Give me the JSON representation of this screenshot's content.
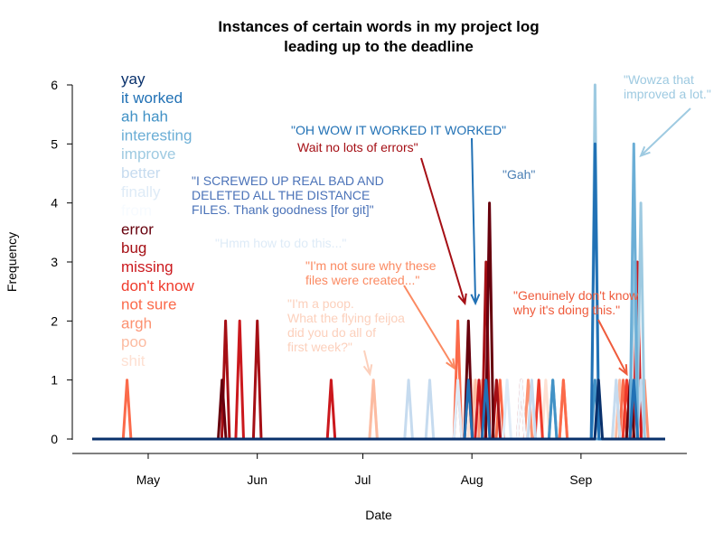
{
  "chart_data": {
    "type": "line",
    "title": [
      "Instances of certain words in my project log",
      "leading up to the deadline"
    ],
    "xlabel": "Date",
    "ylabel": "Frequency",
    "ylim": [
      0,
      6
    ],
    "xlim": [
      "2016-04-12",
      "2016-09-28"
    ],
    "y_ticks": [
      "0",
      "1",
      "2",
      "3",
      "4",
      "5",
      "6"
    ],
    "x_ticks": [
      {
        "label": "May",
        "date": "2016-05-01"
      },
      {
        "label": "Jun",
        "date": "2016-06-01"
      },
      {
        "label": "Jul",
        "date": "2016-07-01"
      },
      {
        "label": "Aug",
        "date": "2016-08-01"
      },
      {
        "label": "Sep",
        "date": "2016-09-01"
      }
    ],
    "grid": false,
    "legend_position": "top-left",
    "series": [
      {
        "name": "yay",
        "color": "#08306b",
        "points": [
          [
            "2016-09-06",
            1
          ]
        ]
      },
      {
        "name": "it worked",
        "color": "#2171b5",
        "points": [
          [
            "2016-07-31",
            1
          ],
          [
            "2016-08-05",
            1
          ],
          [
            "2016-09-05",
            5
          ],
          [
            "2016-09-16",
            1
          ]
        ]
      },
      {
        "name": "ah hah",
        "color": "#4292c6",
        "points": [
          [
            "2016-08-24",
            1
          ],
          [
            "2016-09-05",
            1
          ]
        ]
      },
      {
        "name": "interesting",
        "color": "#6baed6",
        "points": [
          [
            "2016-08-24",
            1
          ],
          [
            "2016-09-16",
            5
          ]
        ]
      },
      {
        "name": "improve",
        "color": "#9ecae1",
        "points": [
          [
            "2016-09-05",
            6
          ],
          [
            "2016-09-16",
            3
          ],
          [
            "2016-09-18",
            4
          ]
        ]
      },
      {
        "name": "better",
        "color": "#c6dbef",
        "points": [
          [
            "2016-07-14",
            1
          ],
          [
            "2016-07-20",
            1
          ],
          [
            "2016-08-18",
            1
          ],
          [
            "2016-09-11",
            1
          ],
          [
            "2016-09-18",
            1
          ]
        ]
      },
      {
        "name": "finally",
        "color": "#deebf7",
        "points": [
          [
            "2016-07-28",
            1
          ],
          [
            "2016-08-11",
            1
          ],
          [
            "2016-09-11",
            1
          ]
        ]
      },
      {
        "name": "from",
        "color": "#f7fbff",
        "points": [
          [
            "2016-08-15",
            1
          ]
        ]
      },
      {
        "name": "error",
        "color": "#67000d",
        "points": [
          [
            "2016-05-22",
            1
          ],
          [
            "2016-07-31",
            2
          ],
          [
            "2016-08-06",
            4
          ],
          [
            "2016-09-15",
            1
          ]
        ]
      },
      {
        "name": "bug",
        "color": "#a50f15",
        "points": [
          [
            "2016-05-23",
            2
          ],
          [
            "2016-06-01",
            2
          ],
          [
            "2016-08-05",
            3
          ],
          [
            "2016-08-08",
            1
          ],
          [
            "2016-08-15",
            1
          ]
        ]
      },
      {
        "name": "missing",
        "color": "#cb181d",
        "points": [
          [
            "2016-05-27",
            2
          ],
          [
            "2016-06-22",
            1
          ],
          [
            "2016-08-03",
            1
          ],
          [
            "2016-09-17",
            3
          ]
        ]
      },
      {
        "name": "don't know",
        "color": "#ef3b2c",
        "points": [
          [
            "2016-07-31",
            1
          ],
          [
            "2016-08-20",
            1
          ],
          [
            "2016-09-14",
            1
          ],
          [
            "2016-09-18",
            1
          ]
        ]
      },
      {
        "name": "not sure",
        "color": "#fb6a4a",
        "points": [
          [
            "2016-04-25",
            1
          ],
          [
            "2016-07-28",
            2
          ],
          [
            "2016-08-09",
            1
          ],
          [
            "2016-08-27",
            1
          ],
          [
            "2016-09-13",
            1
          ]
        ]
      },
      {
        "name": "argh",
        "color": "#fc9272",
        "points": [
          [
            "2016-07-28",
            1
          ],
          [
            "2016-08-04",
            1
          ],
          [
            "2016-08-17",
            1
          ],
          [
            "2016-08-27",
            1
          ],
          [
            "2016-09-19",
            1
          ]
        ]
      },
      {
        "name": "poo",
        "color": "#fcbba1",
        "points": [
          [
            "2016-07-04",
            1
          ],
          [
            "2016-08-02",
            1
          ],
          [
            "2016-09-12",
            1
          ]
        ]
      },
      {
        "name": "shit",
        "color": "#fee0d2",
        "points": [
          [
            "2016-07-04",
            1
          ],
          [
            "2016-08-01",
            1
          ],
          [
            "2016-08-22",
            1
          ]
        ]
      }
    ],
    "annotations": [
      {
        "text": "\"OH WOW IT WORKED IT WORKED\"",
        "color": "#2171b5",
        "arrow_to": [
          "2016-08-02",
          2.3
        ]
      },
      {
        "text": "Wait no lots of errors\"",
        "color": "#a50f15",
        "arrow_to": [
          "2016-07-30",
          2.3
        ]
      },
      {
        "text": "\"Gah\"",
        "color": "#4a7fb5",
        "arrow_to": null
      },
      {
        "text": "\"Wowza that\nimproved a lot.\"",
        "color": "#9ecae1",
        "arrow_to": [
          "2016-09-18",
          4.8
        ]
      },
      {
        "text": "\"I SCREWED UP REAL BAD AND\nDELETED ALL THE DISTANCE\nFILES. Thank goodness [for git]\"",
        "color": "#4a72b8",
        "arrow_to": null
      },
      {
        "text": "\"Hmm how to do this...\"",
        "color": "#deebf7",
        "arrow_to": null
      },
      {
        "text": "\"I'm not sure why these\nfiles were created...\"",
        "color": "#fb8a62",
        "arrow_to": [
          "2016-07-27",
          1.2
        ]
      },
      {
        "text": "\"I'm a poop.\nWhat the flying feijoa\ndid you do all of\nfirst week?\"",
        "color": "#fcd0bc",
        "arrow_to": [
          "2016-07-03",
          1.1
        ]
      },
      {
        "text": "\"Genuinely don't know\nwhy it's doing this.\"",
        "color": "#ef5b3c",
        "arrow_to": [
          "2016-09-14",
          1.1
        ]
      }
    ]
  }
}
